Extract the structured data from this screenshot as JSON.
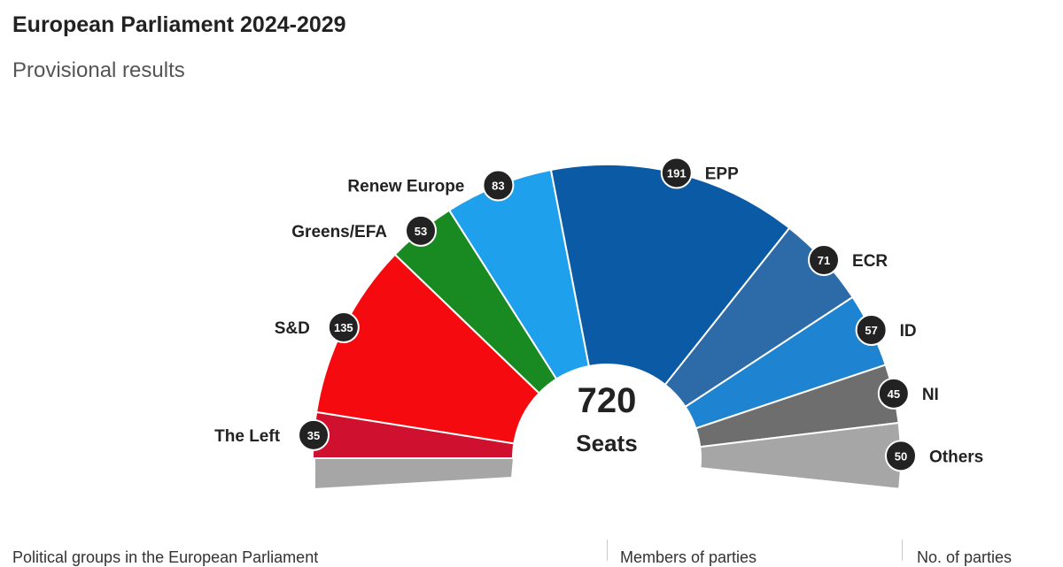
{
  "header": {
    "title": "European Parliament 2024-2029",
    "subtitle": "Provisional results"
  },
  "chart_data": {
    "type": "pie",
    "subtype": "hemicycle",
    "title": "European Parliament 2024-2029",
    "subtitle": "Provisional results",
    "total": 720,
    "total_label": "Seats",
    "series": [
      {
        "name": "The Left",
        "value": 35,
        "color": "#d0102f"
      },
      {
        "name": "S&D",
        "value": 135,
        "color": "#f50a0f"
      },
      {
        "name": "Greens/EFA",
        "value": 53,
        "color": "#198a22"
      },
      {
        "name": "Renew Europe",
        "value": 83,
        "color": "#1fa0ec"
      },
      {
        "name": "EPP",
        "value": 191,
        "color": "#0a5aa5"
      },
      {
        "name": "ECR",
        "value": 71,
        "color": "#2d6aa8"
      },
      {
        "name": "ID",
        "value": 57,
        "color": "#1e83d0"
      },
      {
        "name": "NI",
        "value": 45,
        "color": "#6e6e6e"
      },
      {
        "name": "Others",
        "value": 50,
        "color": "#a6a6a6"
      }
    ]
  },
  "footer": {
    "col1": "Political groups in the European Parliament",
    "col2": "Members of parties",
    "col3": "No. of parties"
  }
}
